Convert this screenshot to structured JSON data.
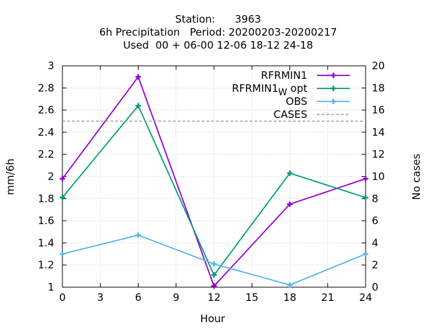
{
  "chart_data": {
    "type": "line",
    "title_lines": [
      "Station:      3963",
      "6h Precipitation   Period: 20200203-20200217",
      "Used  00 + 06-00 12-06 18-12 24-18"
    ],
    "xlabel": "Hour",
    "ylabel": "mm/6h",
    "y2label": "No cases",
    "x_ticks": [
      0,
      3,
      6,
      9,
      12,
      15,
      18,
      21,
      24
    ],
    "y_ticks": [
      1,
      1.2,
      1.4,
      1.6,
      1.8,
      2,
      2.2,
      2.4,
      2.6,
      2.8,
      3
    ],
    "y_tick_labels": [
      "1",
      "1.2",
      "1.4",
      "1.6",
      "1.8",
      "2",
      "2.2",
      "2.4",
      "2.6",
      "2.8",
      "3"
    ],
    "y2_ticks": [
      0,
      2,
      4,
      6,
      8,
      10,
      12,
      14,
      16,
      18,
      20
    ],
    "xlim": [
      0,
      24
    ],
    "ylim": [
      1,
      3
    ],
    "y2lim": [
      0,
      20
    ],
    "grid": true,
    "legend_position": "top-right",
    "x": [
      0,
      6,
      12,
      18,
      24
    ],
    "series": [
      {
        "name": "RFRMIN1",
        "name_sub": "",
        "name_suffix": "",
        "color": "#9400d3",
        "marker": "plus",
        "dashed": false,
        "axis": "y",
        "values": [
          1.98,
          2.9,
          1.01,
          1.75,
          1.98
        ]
      },
      {
        "name": "RFRMIN1",
        "name_sub": "W",
        "name_suffix": "opt",
        "color": "#009e73",
        "marker": "plus",
        "dashed": false,
        "axis": "y",
        "values": [
          1.81,
          2.64,
          1.11,
          2.03,
          1.81
        ]
      },
      {
        "name": "OBS",
        "name_sub": "",
        "name_suffix": "",
        "color": "#56b4e9",
        "marker": "plus",
        "dashed": false,
        "axis": "y",
        "values": [
          1.3,
          1.47,
          1.21,
          1.02,
          1.3
        ]
      },
      {
        "name": "CASES",
        "name_sub": "",
        "name_suffix": "",
        "color": "#a0a0a0",
        "marker": "none",
        "dashed": true,
        "axis": "y2",
        "values": [
          15,
          15,
          15,
          15,
          15
        ]
      }
    ]
  }
}
